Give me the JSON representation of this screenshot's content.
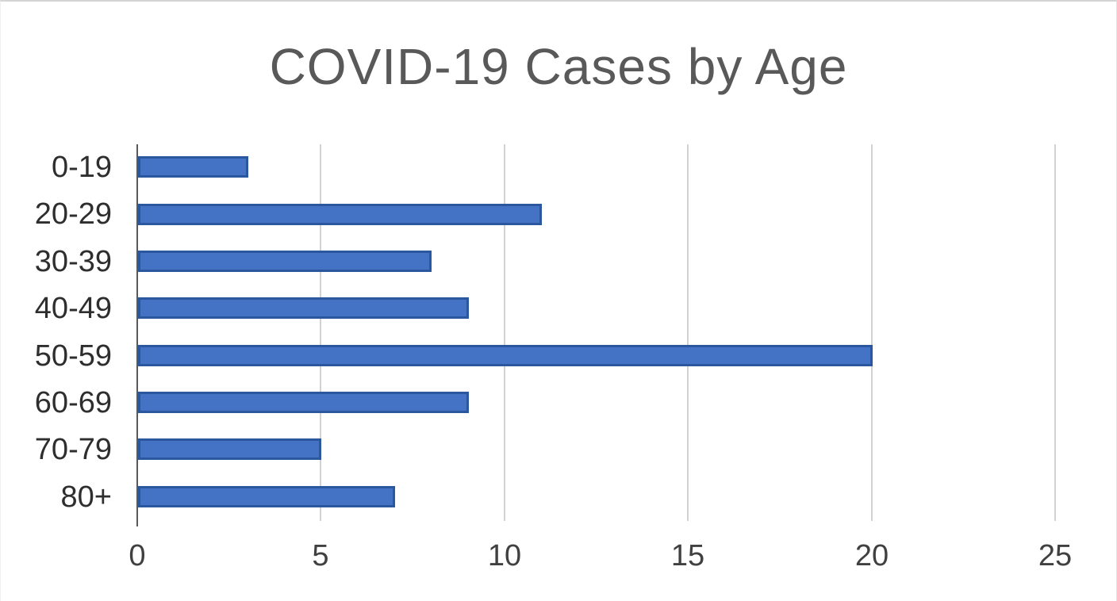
{
  "chart_data": {
    "type": "bar",
    "orientation": "horizontal",
    "title": "COVID-19 Cases by Age",
    "categories": [
      "0-19",
      "20-29",
      "30-39",
      "40-49",
      "50-59",
      "60-69",
      "70-79",
      "80+"
    ],
    "values": [
      3,
      11,
      8,
      9,
      20,
      9,
      5,
      7
    ],
    "xlabel": "",
    "ylabel": "",
    "xlim": [
      0,
      25
    ],
    "x_ticks": [
      0,
      5,
      10,
      15,
      20,
      25
    ],
    "grid": true,
    "legend": false,
    "colors": {
      "bar_fill": "#4472c4",
      "bar_border": "#2b579f",
      "gridline": "#d2d2d2",
      "axis_line": "#595959",
      "title_text": "#595959",
      "category_label": "#2e2e2e",
      "tick_label": "#404040",
      "background": "#ffffff"
    }
  }
}
